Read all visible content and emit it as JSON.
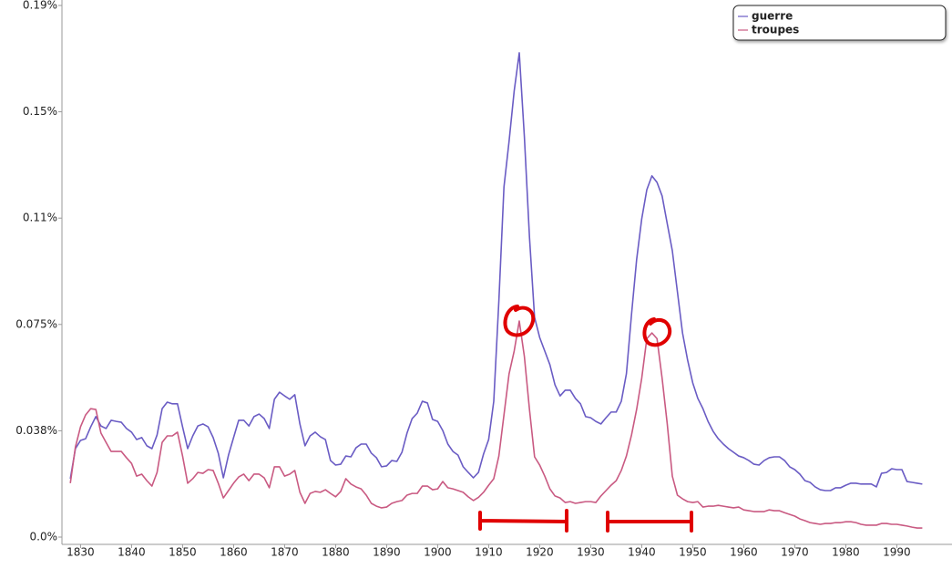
{
  "chart_data": {
    "type": "line",
    "x": [
      1828,
      1829,
      1830,
      1831,
      1832,
      1833,
      1834,
      1835,
      1836,
      1837,
      1838,
      1839,
      1840,
      1841,
      1842,
      1843,
      1844,
      1845,
      1846,
      1847,
      1848,
      1849,
      1850,
      1851,
      1852,
      1853,
      1854,
      1855,
      1856,
      1857,
      1858,
      1859,
      1860,
      1861,
      1862,
      1863,
      1864,
      1865,
      1866,
      1867,
      1868,
      1869,
      1870,
      1871,
      1872,
      1873,
      1874,
      1875,
      1876,
      1877,
      1878,
      1879,
      1880,
      1881,
      1882,
      1883,
      1884,
      1885,
      1886,
      1887,
      1888,
      1889,
      1890,
      1891,
      1892,
      1893,
      1894,
      1895,
      1896,
      1897,
      1898,
      1899,
      1900,
      1901,
      1902,
      1903,
      1904,
      1905,
      1906,
      1907,
      1908,
      1909,
      1910,
      1911,
      1912,
      1913,
      1914,
      1915,
      1916,
      1917,
      1918,
      1919,
      1920,
      1921,
      1922,
      1923,
      1924,
      1925,
      1926,
      1927,
      1928,
      1929,
      1930,
      1931,
      1932,
      1933,
      1934,
      1935,
      1936,
      1937,
      1938,
      1939,
      1940,
      1941,
      1942,
      1943,
      1944,
      1945,
      1946,
      1947,
      1948,
      1949,
      1950,
      1951,
      1952,
      1953,
      1954,
      1955,
      1956,
      1957,
      1958,
      1959,
      1960,
      1961,
      1962,
      1963,
      1964,
      1965,
      1966,
      1967,
      1968,
      1969,
      1970,
      1971,
      1972,
      1973,
      1974,
      1975,
      1976,
      1977,
      1978,
      1979,
      1980,
      1981,
      1982,
      1983,
      1984,
      1985,
      1986,
      1987,
      1988,
      1989,
      1990,
      1991,
      1992,
      1993,
      1994,
      1995
    ],
    "series": [
      {
        "name": "guerre",
        "color": "#6a5cc4",
        "values": [
          0.0206,
          0.0312,
          0.0341,
          0.0347,
          0.0389,
          0.0425,
          0.0392,
          0.0383,
          0.0412,
          0.0408,
          0.0405,
          0.0383,
          0.037,
          0.0344,
          0.0351,
          0.0322,
          0.0312,
          0.036,
          0.0453,
          0.0476,
          0.047,
          0.047,
          0.0389,
          0.0312,
          0.0357,
          0.0392,
          0.0399,
          0.0389,
          0.0351,
          0.0296,
          0.0209,
          0.0289,
          0.0351,
          0.0412,
          0.0412,
          0.0392,
          0.0425,
          0.0434,
          0.0418,
          0.0383,
          0.0486,
          0.0511,
          0.0498,
          0.0486,
          0.0502,
          0.0399,
          0.0322,
          0.0357,
          0.037,
          0.0354,
          0.0344,
          0.027,
          0.0254,
          0.0257,
          0.0286,
          0.0283,
          0.0315,
          0.0328,
          0.0328,
          0.0296,
          0.028,
          0.0248,
          0.0251,
          0.027,
          0.0267,
          0.0299,
          0.0367,
          0.0418,
          0.0437,
          0.0479,
          0.0473,
          0.0415,
          0.0408,
          0.0376,
          0.0328,
          0.0302,
          0.0289,
          0.0248,
          0.0228,
          0.0209,
          0.0228,
          0.0293,
          0.0344,
          0.0479,
          0.0833,
          0.1235,
          0.1396,
          0.1573,
          0.1708,
          0.1412,
          0.1058,
          0.0775,
          0.0704,
          0.0656,
          0.0608,
          0.0537,
          0.0498,
          0.0518,
          0.0518,
          0.0489,
          0.047,
          0.0425,
          0.0421,
          0.0408,
          0.0399,
          0.0421,
          0.0441,
          0.0441,
          0.0479,
          0.0576,
          0.0785,
          0.0978,
          0.1122,
          0.1225,
          0.1274,
          0.1251,
          0.1203,
          0.1106,
          0.101,
          0.0865,
          0.072,
          0.0624,
          0.0544,
          0.0489,
          0.0453,
          0.0408,
          0.0373,
          0.0347,
          0.0328,
          0.0312,
          0.0299,
          0.0286,
          0.028,
          0.027,
          0.0257,
          0.0254,
          0.027,
          0.028,
          0.0283,
          0.0283,
          0.027,
          0.0248,
          0.0238,
          0.0222,
          0.0199,
          0.0193,
          0.0177,
          0.0167,
          0.0164,
          0.0164,
          0.0174,
          0.0174,
          0.0183,
          0.019,
          0.019,
          0.0187,
          0.0187,
          0.0187,
          0.0177,
          0.0225,
          0.0228,
          0.0241,
          0.0238,
          0.0238,
          0.0196,
          0.0193,
          0.019,
          0.0187
        ]
      },
      {
        "name": "troupes",
        "color": "#c95a82",
        "values": [
          0.019,
          0.0318,
          0.0389,
          0.0431,
          0.0453,
          0.045,
          0.0367,
          0.0334,
          0.0302,
          0.0302,
          0.0302,
          0.028,
          0.026,
          0.0215,
          0.0222,
          0.0199,
          0.018,
          0.0228,
          0.0334,
          0.0357,
          0.0357,
          0.037,
          0.0286,
          0.019,
          0.0206,
          0.0228,
          0.0225,
          0.0238,
          0.0235,
          0.019,
          0.0138,
          0.0164,
          0.019,
          0.0212,
          0.0222,
          0.0199,
          0.0222,
          0.0222,
          0.0209,
          0.0174,
          0.0248,
          0.0248,
          0.0215,
          0.0222,
          0.0235,
          0.0158,
          0.0119,
          0.0154,
          0.0161,
          0.0158,
          0.0167,
          0.0154,
          0.0142,
          0.0161,
          0.0206,
          0.0187,
          0.0177,
          0.017,
          0.0148,
          0.0119,
          0.0109,
          0.0103,
          0.0106,
          0.0119,
          0.0125,
          0.0129,
          0.0148,
          0.0154,
          0.0154,
          0.018,
          0.018,
          0.0167,
          0.017,
          0.0196,
          0.0174,
          0.017,
          0.0164,
          0.0158,
          0.0142,
          0.0129,
          0.014,
          0.0158,
          0.0183,
          0.0206,
          0.0286,
          0.0431,
          0.0576,
          0.0656,
          0.0762,
          0.0637,
          0.045,
          0.0283,
          0.0254,
          0.0215,
          0.017,
          0.0145,
          0.0138,
          0.0122,
          0.0125,
          0.0119,
          0.0122,
          0.0125,
          0.0125,
          0.0122,
          0.0145,
          0.0164,
          0.0183,
          0.0199,
          0.0235,
          0.0286,
          0.036,
          0.045,
          0.056,
          0.07,
          0.072,
          0.07,
          0.056,
          0.04,
          0.0215,
          0.0148,
          0.0135,
          0.0125,
          0.0122,
          0.0125,
          0.0106,
          0.0109,
          0.0109,
          0.0112,
          0.0109,
          0.0106,
          0.0103,
          0.0106,
          0.0096,
          0.0093,
          0.009,
          0.009,
          0.009,
          0.0096,
          0.0093,
          0.0093,
          0.0086,
          0.008,
          0.0074,
          0.0064,
          0.0058,
          0.0051,
          0.0048,
          0.0045,
          0.0048,
          0.0048,
          0.0051,
          0.0051,
          0.0054,
          0.0054,
          0.0051,
          0.0045,
          0.0042,
          0.0042,
          0.0042,
          0.0048,
          0.0048,
          0.0045,
          0.0045,
          0.0042,
          0.0039,
          0.0035,
          0.0032,
          0.0032
        ]
      }
    ],
    "xlim": [
      1826,
      2000
    ],
    "xticks": [
      1830,
      1840,
      1850,
      1860,
      1870,
      1880,
      1890,
      1900,
      1910,
      1920,
      1930,
      1940,
      1950,
      1960,
      1970,
      1980,
      1990
    ],
    "ylim": [
      0,
      0.1875
    ],
    "yticks": [
      {
        "value": 0,
        "label": "0.0%"
      },
      {
        "value": 0.0375,
        "label": "0.038%"
      },
      {
        "value": 0.075,
        "label": "0.075%"
      },
      {
        "value": 0.1125,
        "label": "0.11%"
      },
      {
        "value": 0.15,
        "label": "0.15%"
      },
      {
        "value": 0.1875,
        "label": "0.19%"
      }
    ],
    "grid": false,
    "legend": "top-right"
  }
}
